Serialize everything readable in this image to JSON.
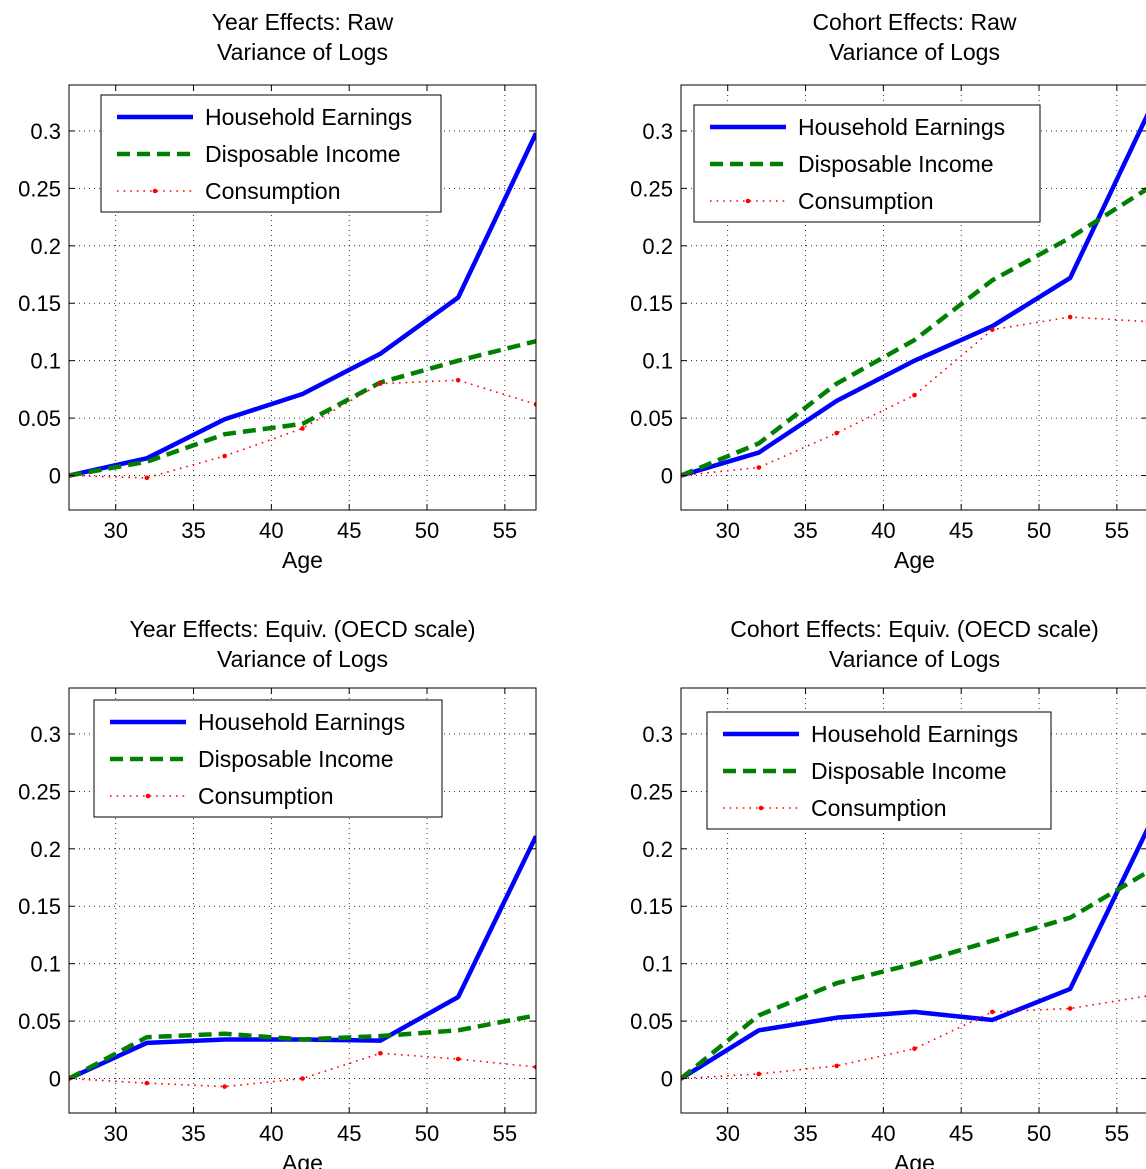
{
  "chart_data": [
    {
      "type": "line",
      "title": "Year Effects: Raw",
      "subtitle": "Variance of Logs",
      "xlabel": "Age",
      "ylabel": "",
      "xlim": [
        27,
        57
      ],
      "ylim": [
        -0.03,
        0.34
      ],
      "xticks": [
        30,
        35,
        40,
        45,
        50,
        55
      ],
      "yticks": [
        0,
        0.05,
        0.1,
        0.15,
        0.2,
        0.25,
        0.3
      ],
      "ytick_labels": [
        "0",
        "0.05",
        "0.1",
        "0.15",
        "0.2",
        "0.25",
        "0.3"
      ],
      "grid": true,
      "legend_position": "top-left",
      "x": [
        27,
        32,
        37,
        42,
        47,
        52,
        57
      ],
      "series": [
        {
          "name": "Household Earnings",
          "values": [
            0,
            0.015,
            0.049,
            0.071,
            0.106,
            0.155,
            0.298
          ],
          "color": "#0000ff",
          "style": "solid"
        },
        {
          "name": "Disposable Income",
          "values": [
            0,
            0.012,
            0.036,
            0.045,
            0.081,
            0.1,
            0.117
          ],
          "color": "#008000",
          "style": "dashed"
        },
        {
          "name": "Consumption",
          "values": [
            0,
            -0.002,
            0.017,
            0.041,
            0.08,
            0.083,
            0.062
          ],
          "color": "#ff0000",
          "style": "dotted"
        }
      ]
    },
    {
      "type": "line",
      "title": "Cohort Effects: Raw",
      "subtitle": "Variance of Logs",
      "xlabel": "Age",
      "ylabel": "",
      "xlim": [
        27,
        57
      ],
      "ylim": [
        -0.03,
        0.34
      ],
      "xticks": [
        30,
        35,
        40,
        45,
        50,
        55
      ],
      "yticks": [
        0,
        0.05,
        0.1,
        0.15,
        0.2,
        0.25,
        0.3
      ],
      "ytick_labels": [
        "0",
        "0.05",
        "0.1",
        "0.15",
        "0.2",
        "0.25",
        "0.3"
      ],
      "grid": true,
      "legend_position": "top-left",
      "x": [
        27,
        32,
        37,
        42,
        47,
        52,
        57
      ],
      "series": [
        {
          "name": "Household Earnings",
          "values": [
            0,
            0.02,
            0.065,
            0.1,
            0.13,
            0.172,
            0.315
          ],
          "color": "#0000ff",
          "style": "solid"
        },
        {
          "name": "Disposable Income",
          "values": [
            0,
            0.028,
            0.08,
            0.118,
            0.17,
            0.207,
            0.25
          ],
          "color": "#008000",
          "style": "dashed"
        },
        {
          "name": "Consumption",
          "values": [
            0,
            0.007,
            0.037,
            0.07,
            0.127,
            0.138,
            0.134
          ],
          "color": "#ff0000",
          "style": "dotted"
        }
      ]
    },
    {
      "type": "line",
      "title": "Year Effects: Equiv. (OECD scale)",
      "subtitle": "Variance of Logs",
      "xlabel": "Age",
      "ylabel": "",
      "xlim": [
        27,
        57
      ],
      "ylim": [
        -0.03,
        0.34
      ],
      "xticks": [
        30,
        35,
        40,
        45,
        50,
        55
      ],
      "yticks": [
        0,
        0.05,
        0.1,
        0.15,
        0.2,
        0.25,
        0.3
      ],
      "ytick_labels": [
        "0",
        "0.05",
        "0.1",
        "0.15",
        "0.2",
        "0.25",
        "0.3"
      ],
      "grid": true,
      "legend_position": "top-left",
      "x": [
        27,
        32,
        37,
        42,
        47,
        52,
        57
      ],
      "series": [
        {
          "name": "Household Earnings",
          "values": [
            0,
            0.031,
            0.034,
            0.034,
            0.033,
            0.071,
            0.211
          ],
          "color": "#0000ff",
          "style": "solid"
        },
        {
          "name": "Disposable Income",
          "values": [
            0,
            0.036,
            0.039,
            0.034,
            0.037,
            0.042,
            0.055
          ],
          "color": "#008000",
          "style": "dashed"
        },
        {
          "name": "Consumption",
          "values": [
            0,
            -0.004,
            -0.007,
            0,
            0.022,
            0.017,
            0.01
          ],
          "color": "#ff0000",
          "style": "dotted"
        }
      ]
    },
    {
      "type": "line",
      "title": "Cohort Effects: Equiv. (OECD scale)",
      "subtitle": "Variance of Logs",
      "xlabel": "Age",
      "ylabel": "",
      "xlim": [
        27,
        57
      ],
      "ylim": [
        -0.03,
        0.34
      ],
      "xticks": [
        30,
        35,
        40,
        45,
        50,
        55
      ],
      "yticks": [
        0,
        0.05,
        0.1,
        0.15,
        0.2,
        0.25,
        0.3
      ],
      "ytick_labels": [
        "0",
        "0.05",
        "0.1",
        "0.15",
        "0.2",
        "0.25",
        "0.3"
      ],
      "grid": true,
      "legend_position": "top-left",
      "x": [
        27,
        32,
        37,
        42,
        47,
        52,
        57
      ],
      "series": [
        {
          "name": "Household Earnings",
          "values": [
            0,
            0.042,
            0.053,
            0.058,
            0.051,
            0.078,
            0.218
          ],
          "color": "#0000ff",
          "style": "solid"
        },
        {
          "name": "Disposable Income",
          "values": [
            0,
            0.055,
            0.083,
            0.1,
            0.12,
            0.14,
            0.18
          ],
          "color": "#008000",
          "style": "dashed"
        },
        {
          "name": "Consumption",
          "values": [
            0,
            0.004,
            0.011,
            0.026,
            0.058,
            0.061,
            0.072
          ],
          "color": "#ff0000",
          "style": "dotted"
        }
      ]
    }
  ]
}
